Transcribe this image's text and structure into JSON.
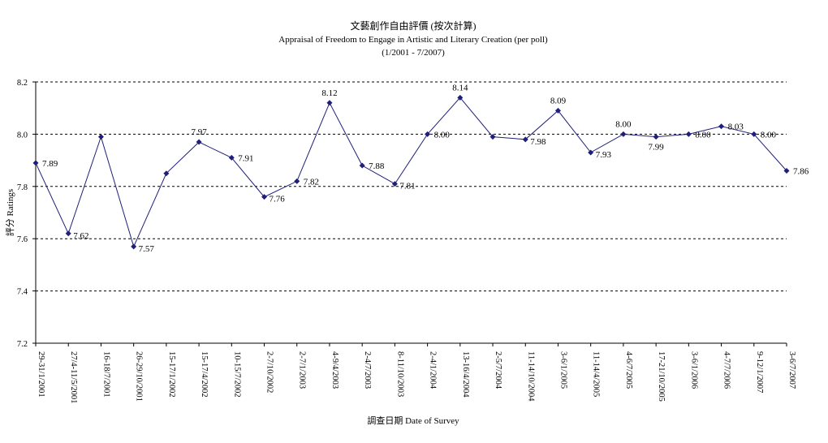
{
  "chart_data": {
    "type": "line",
    "title": "文藝創作自由評價 (按次計算)",
    "subtitle": "Appraisal of Freedom to Engage in Artistic and Literary Creation (per poll)",
    "period": "(1/2001 - 7/2007)",
    "xlabel": "調查日期 Date of Survey",
    "ylabel": "評分 Ratings",
    "ylim": [
      7.2,
      8.2
    ],
    "yticks": [
      "7.2",
      "7.4",
      "7.6",
      "7.8",
      "8.0",
      "8.2"
    ],
    "grid": "horizontal dashed",
    "line_color": "#1f1f7a",
    "categories": [
      "29-31/1/2001",
      "27/4-11/5/2001",
      "16-18/7/2001",
      "26-29/10/2001",
      "15-17/1/2002",
      "15-17/4/2002",
      "10-15/7/2002",
      "2-7/10/2002",
      "2-7/1/2003",
      "4-9/4/2003",
      "2-4/7/2003",
      "8-11/10/2003",
      "2-4/1/2004",
      "13-16/4/2004",
      "2-5/7/2004",
      "11-14/10/2004",
      "3-6/1/2005",
      "11-14/4/2005",
      "4-6/7/2005",
      "17-21/10/2005",
      "3-6/1/2006",
      "4-7/7/2006",
      "9-12/1/2007",
      "3-6/7/2007"
    ],
    "values": [
      7.89,
      7.62,
      7.99,
      7.57,
      7.85,
      7.97,
      7.91,
      7.76,
      7.82,
      8.12,
      7.88,
      7.81,
      8.0,
      8.14,
      7.99,
      7.98,
      8.09,
      7.93,
      8.0,
      7.99,
      8.0,
      8.03,
      8.0,
      7.86
    ],
    "data_labels": [
      "7.89",
      "7.62",
      "",
      "7.57",
      "",
      "7.97",
      "7.91",
      "7.76",
      "7.82",
      "8.12",
      "7.88",
      "7.81",
      "8.00",
      "8.14",
      "",
      "7.98",
      "8.09",
      "7.93",
      "8.00",
      "7.99",
      "8.00",
      "8.03",
      "8.00",
      "7.86"
    ]
  }
}
